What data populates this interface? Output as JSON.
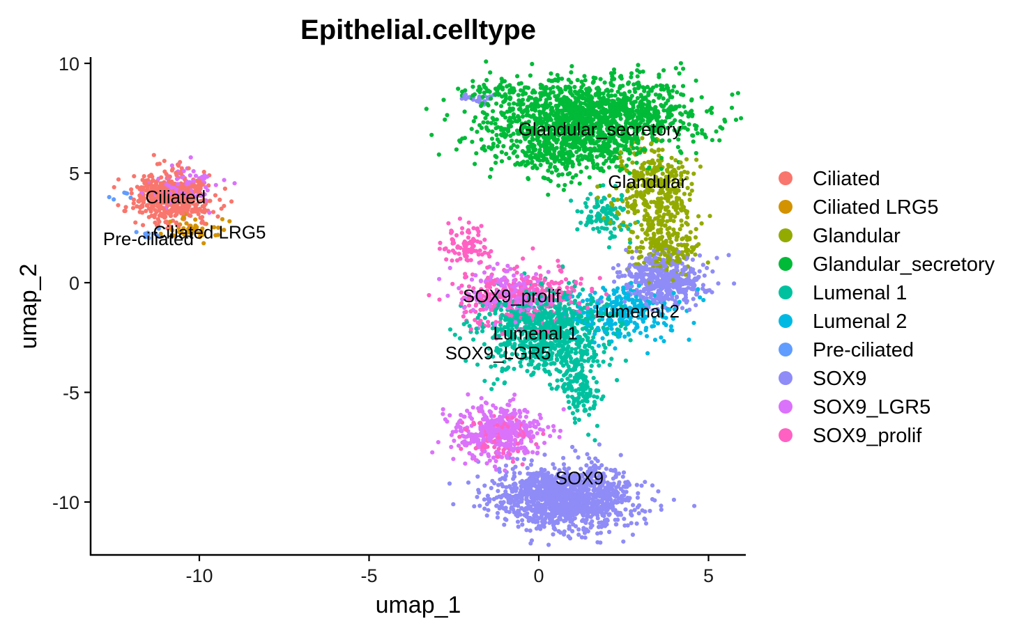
{
  "chart_data": {
    "type": "scatter",
    "title": "Epithelial.celltype",
    "xlabel": "umap_1",
    "ylabel": "umap_2",
    "xlim": [
      -13.2,
      6.1
    ],
    "ylim": [
      -12.4,
      10.4
    ],
    "x_ticks": [
      -10,
      -5,
      0,
      5
    ],
    "y_ticks": [
      10,
      5,
      0,
      -5,
      -10
    ],
    "grid": false,
    "legend_position": "right",
    "series": [
      {
        "name": "Ciliated",
        "color": "#F8766D"
      },
      {
        "name": "Ciliated LRG5",
        "color": "#D39200"
      },
      {
        "name": "Glandular",
        "color": "#93AA00"
      },
      {
        "name": "Glandular_secretory",
        "color": "#00BA38"
      },
      {
        "name": "Lumenal 1",
        "color": "#00C19F"
      },
      {
        "name": "Lumenal 2",
        "color": "#00B9E3"
      },
      {
        "name": "Pre-ciliated",
        "color": "#619CFF"
      },
      {
        "name": "SOX9",
        "color": "#8F8CF7"
      },
      {
        "name": "SOX9_LGR5",
        "color": "#DB72FB"
      },
      {
        "name": "SOX9_prolif",
        "color": "#FF61C3"
      }
    ],
    "clusters": [
      {
        "series": 0,
        "regions": [
          {
            "cx": -10.8,
            "cy": 3.9,
            "sx": 0.55,
            "sy": 0.55,
            "n": 520
          }
        ]
      },
      {
        "series": 1,
        "regions": [
          {
            "cx": -10.2,
            "cy": 2.4,
            "sx": 0.35,
            "sy": 0.25,
            "n": 50
          }
        ]
      },
      {
        "series": 2,
        "regions": [
          {
            "cx": 3.4,
            "cy": 4.2,
            "sx": 0.6,
            "sy": 1.1,
            "n": 380
          },
          {
            "cx": 3.8,
            "cy": 1.6,
            "sx": 0.5,
            "sy": 0.6,
            "n": 160
          }
        ]
      },
      {
        "series": 3,
        "regions": [
          {
            "cx": 1.5,
            "cy": 7.5,
            "sx": 1.5,
            "sy": 0.9,
            "n": 1500
          },
          {
            "cx": 0.6,
            "cy": 5.9,
            "sx": 0.9,
            "sy": 0.6,
            "n": 260
          },
          {
            "cx": -1.3,
            "cy": 8.8,
            "sx": 0.5,
            "sy": 0.2,
            "n": 50
          }
        ]
      },
      {
        "series": 4,
        "regions": [
          {
            "cx": 0.2,
            "cy": -2.2,
            "sx": 0.9,
            "sy": 0.9,
            "n": 850
          },
          {
            "cx": 1.2,
            "cy": -4.6,
            "sx": 0.3,
            "sy": 0.8,
            "n": 150
          },
          {
            "cx": 1.9,
            "cy": 3.1,
            "sx": 0.4,
            "sy": 0.6,
            "n": 100
          }
        ]
      },
      {
        "series": 5,
        "regions": [
          {
            "cx": 2.5,
            "cy": -1.4,
            "sx": 0.8,
            "sy": 0.6,
            "n": 260
          }
        ]
      },
      {
        "series": 6,
        "regions": [
          {
            "cx": -11.5,
            "cy": 2.2,
            "sx": 0.2,
            "sy": 0.2,
            "n": 12
          },
          {
            "cx": -12.2,
            "cy": 4.0,
            "sx": 0.15,
            "sy": 0.15,
            "n": 6
          }
        ]
      },
      {
        "series": 7,
        "regions": [
          {
            "cx": 0.8,
            "cy": -9.8,
            "sx": 1.0,
            "sy": 0.7,
            "n": 1300
          },
          {
            "cx": 3.7,
            "cy": 0.1,
            "sx": 0.6,
            "sy": 0.6,
            "n": 450
          },
          {
            "cx": -1.8,
            "cy": 8.4,
            "sx": 0.25,
            "sy": 0.12,
            "n": 25
          }
        ]
      },
      {
        "series": 8,
        "regions": [
          {
            "cx": -1.2,
            "cy": -6.8,
            "sx": 0.6,
            "sy": 0.6,
            "n": 420
          },
          {
            "cx": -10.5,
            "cy": 4.3,
            "sx": 0.4,
            "sy": 0.5,
            "n": 100
          },
          {
            "cx": -0.9,
            "cy": -0.5,
            "sx": 0.7,
            "sy": 0.5,
            "n": 180
          }
        ]
      },
      {
        "series": 9,
        "regions": [
          {
            "cx": -0.5,
            "cy": -0.6,
            "sx": 0.9,
            "sy": 0.7,
            "n": 320
          },
          {
            "cx": -2.2,
            "cy": 1.7,
            "sx": 0.35,
            "sy": 0.45,
            "n": 90
          },
          {
            "cx": -1.3,
            "cy": -7.0,
            "sx": 0.5,
            "sy": 0.5,
            "n": 80
          }
        ]
      }
    ],
    "annotations": [
      {
        "text": "Glandular_secretory",
        "x": 1.8,
        "y": 7.0
      },
      {
        "text": "Glandular",
        "x": 3.2,
        "y": 4.6
      },
      {
        "text": "Ciliated",
        "x": -10.7,
        "y": 3.9
      },
      {
        "text": "Ciliated LRG5",
        "x": -9.7,
        "y": 2.3
      },
      {
        "text": "Pre-ciliated",
        "x": -11.5,
        "y": 2.0
      },
      {
        "text": "SOX9_prolif",
        "x": -0.8,
        "y": -0.6
      },
      {
        "text": "Lumenal 2",
        "x": 2.9,
        "y": -1.3
      },
      {
        "text": "Lumenal 1",
        "x": -0.1,
        "y": -2.3
      },
      {
        "text": "SOX9_LGR5",
        "x": -1.2,
        "y": -3.2
      },
      {
        "text": "SOX9",
        "x": 1.2,
        "y": -8.9
      }
    ]
  }
}
